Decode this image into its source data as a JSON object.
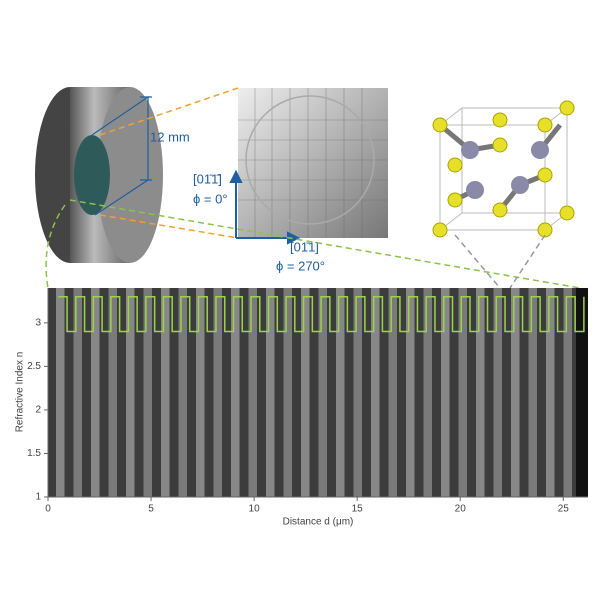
{
  "chart_data": {
    "type": "step",
    "xlabel": "Distance d (μm)",
    "ylabel": "Refractive Index n",
    "annotations": [
      "12 mm",
      "[01̄1̄]",
      "ϕ = 0°",
      "[01̄1]",
      "ϕ = 270°"
    ],
    "xlim": [
      0,
      26.2
    ],
    "ylim": [
      1,
      3.4
    ],
    "xticks": [
      0,
      5,
      10,
      15,
      20,
      25
    ],
    "yticks": [
      1,
      1.5,
      2,
      2.5,
      3
    ],
    "series": [
      {
        "color": "#9bd44a",
        "x": [
          0.5,
          0.925,
          1.35,
          1.775,
          2.2,
          2.625,
          3.05,
          3.475,
          3.9,
          4.325,
          4.75,
          5.175,
          5.6,
          6.025,
          6.45,
          6.875,
          7.3,
          7.725,
          8.15,
          8.575,
          9.0,
          9.425,
          9.85,
          10.275,
          10.7,
          11.125,
          11.55,
          11.975,
          12.4,
          12.825,
          13.25,
          13.675,
          14.1,
          14.525,
          14.95,
          15.375,
          15.8,
          16.225,
          16.65,
          17.075,
          17.5,
          17.925,
          18.35,
          18.775,
          19.2,
          19.625,
          20.05,
          20.475,
          20.9,
          21.325,
          21.75,
          22.175,
          22.6,
          23.025,
          23.45,
          23.875,
          24.3,
          24.725,
          25.15,
          25.575,
          26.0
        ],
        "values": [
          3.3,
          2.9,
          3.3,
          2.9,
          3.3,
          2.9,
          3.3,
          2.9,
          3.3,
          2.9,
          3.3,
          2.9,
          3.3,
          2.9,
          3.3,
          2.9,
          3.3,
          2.9,
          3.3,
          2.9,
          3.3,
          2.9,
          3.3,
          2.9,
          3.3,
          2.9,
          3.3,
          2.9,
          3.3,
          2.9,
          3.3,
          2.9,
          3.3,
          2.9,
          3.3,
          2.9,
          3.3,
          2.9,
          3.3,
          2.9,
          3.3,
          2.9,
          3.3,
          2.9,
          3.3,
          2.9,
          3.3,
          2.9,
          3.3,
          2.9,
          3.3,
          2.9,
          3.3,
          2.9,
          3.3,
          2.9,
          3.3,
          2.9,
          3.3,
          2.9,
          3.3
        ]
      }
    ]
  }
}
